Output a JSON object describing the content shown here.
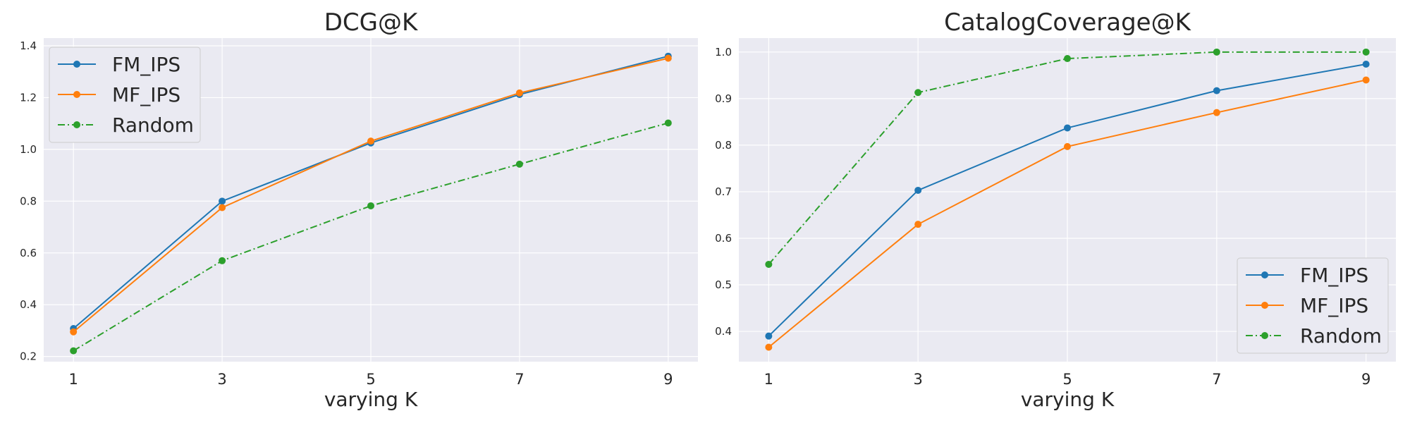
{
  "chart_data": [
    {
      "type": "line",
      "title": "DCG@K",
      "xlabel": "varying K",
      "ylabel": "",
      "x": [
        1,
        3,
        5,
        7,
        9
      ],
      "xlim": [
        0.6,
        9.4
      ],
      "ylim": [
        0.18,
        1.43
      ],
      "yticks": [
        0.2,
        0.4,
        0.6,
        0.8,
        1.0,
        1.2,
        1.4
      ],
      "ytick_labels": [
        "0.2",
        "0.4",
        "0.6",
        "0.8",
        "1.0",
        "1.2",
        "1.4"
      ],
      "legend_position": "top-left",
      "grid": true,
      "series": [
        {
          "name": "FM_IPS",
          "values": [
            0.308,
            0.8,
            1.025,
            1.212,
            1.36
          ],
          "color": "#1f77b4",
          "linestyle": "solid"
        },
        {
          "name": "MF_IPS",
          "values": [
            0.295,
            0.775,
            1.032,
            1.218,
            1.352
          ],
          "color": "#ff7f0e",
          "linestyle": "solid"
        },
        {
          "name": "Random",
          "values": [
            0.222,
            0.57,
            0.782,
            0.943,
            1.102
          ],
          "color": "#2ca02c",
          "linestyle": "dashdot"
        }
      ]
    },
    {
      "type": "line",
      "title": "CatalogCoverage@K",
      "xlabel": "varying K",
      "ylabel": "",
      "x": [
        1,
        3,
        5,
        7,
        9
      ],
      "xlim": [
        0.6,
        9.4
      ],
      "ylim": [
        0.335,
        1.03
      ],
      "yticks": [
        0.4,
        0.5,
        0.6,
        0.7,
        0.8,
        0.9,
        1.0
      ],
      "ytick_labels": [
        "0.4",
        "0.5",
        "0.6",
        "0.7",
        "0.8",
        "0.9",
        "1.0"
      ],
      "legend_position": "bottom-right",
      "grid": true,
      "series": [
        {
          "name": "FM_IPS",
          "values": [
            0.39,
            0.703,
            0.837,
            0.917,
            0.974
          ],
          "color": "#1f77b4",
          "linestyle": "solid"
        },
        {
          "name": "MF_IPS",
          "values": [
            0.366,
            0.63,
            0.797,
            0.87,
            0.94
          ],
          "color": "#ff7f0e",
          "linestyle": "solid"
        },
        {
          "name": "Random",
          "values": [
            0.544,
            0.913,
            0.986,
            1.0,
            1.0
          ],
          "color": "#2ca02c",
          "linestyle": "dashdot"
        }
      ]
    }
  ],
  "style": {
    "background": "#ffffff",
    "plot_background": "#eaeaf2",
    "grid_color": "#ffffff",
    "text_color": "#262626",
    "legend_background": "#eaeaf2",
    "legend_border": "#cccccc"
  }
}
